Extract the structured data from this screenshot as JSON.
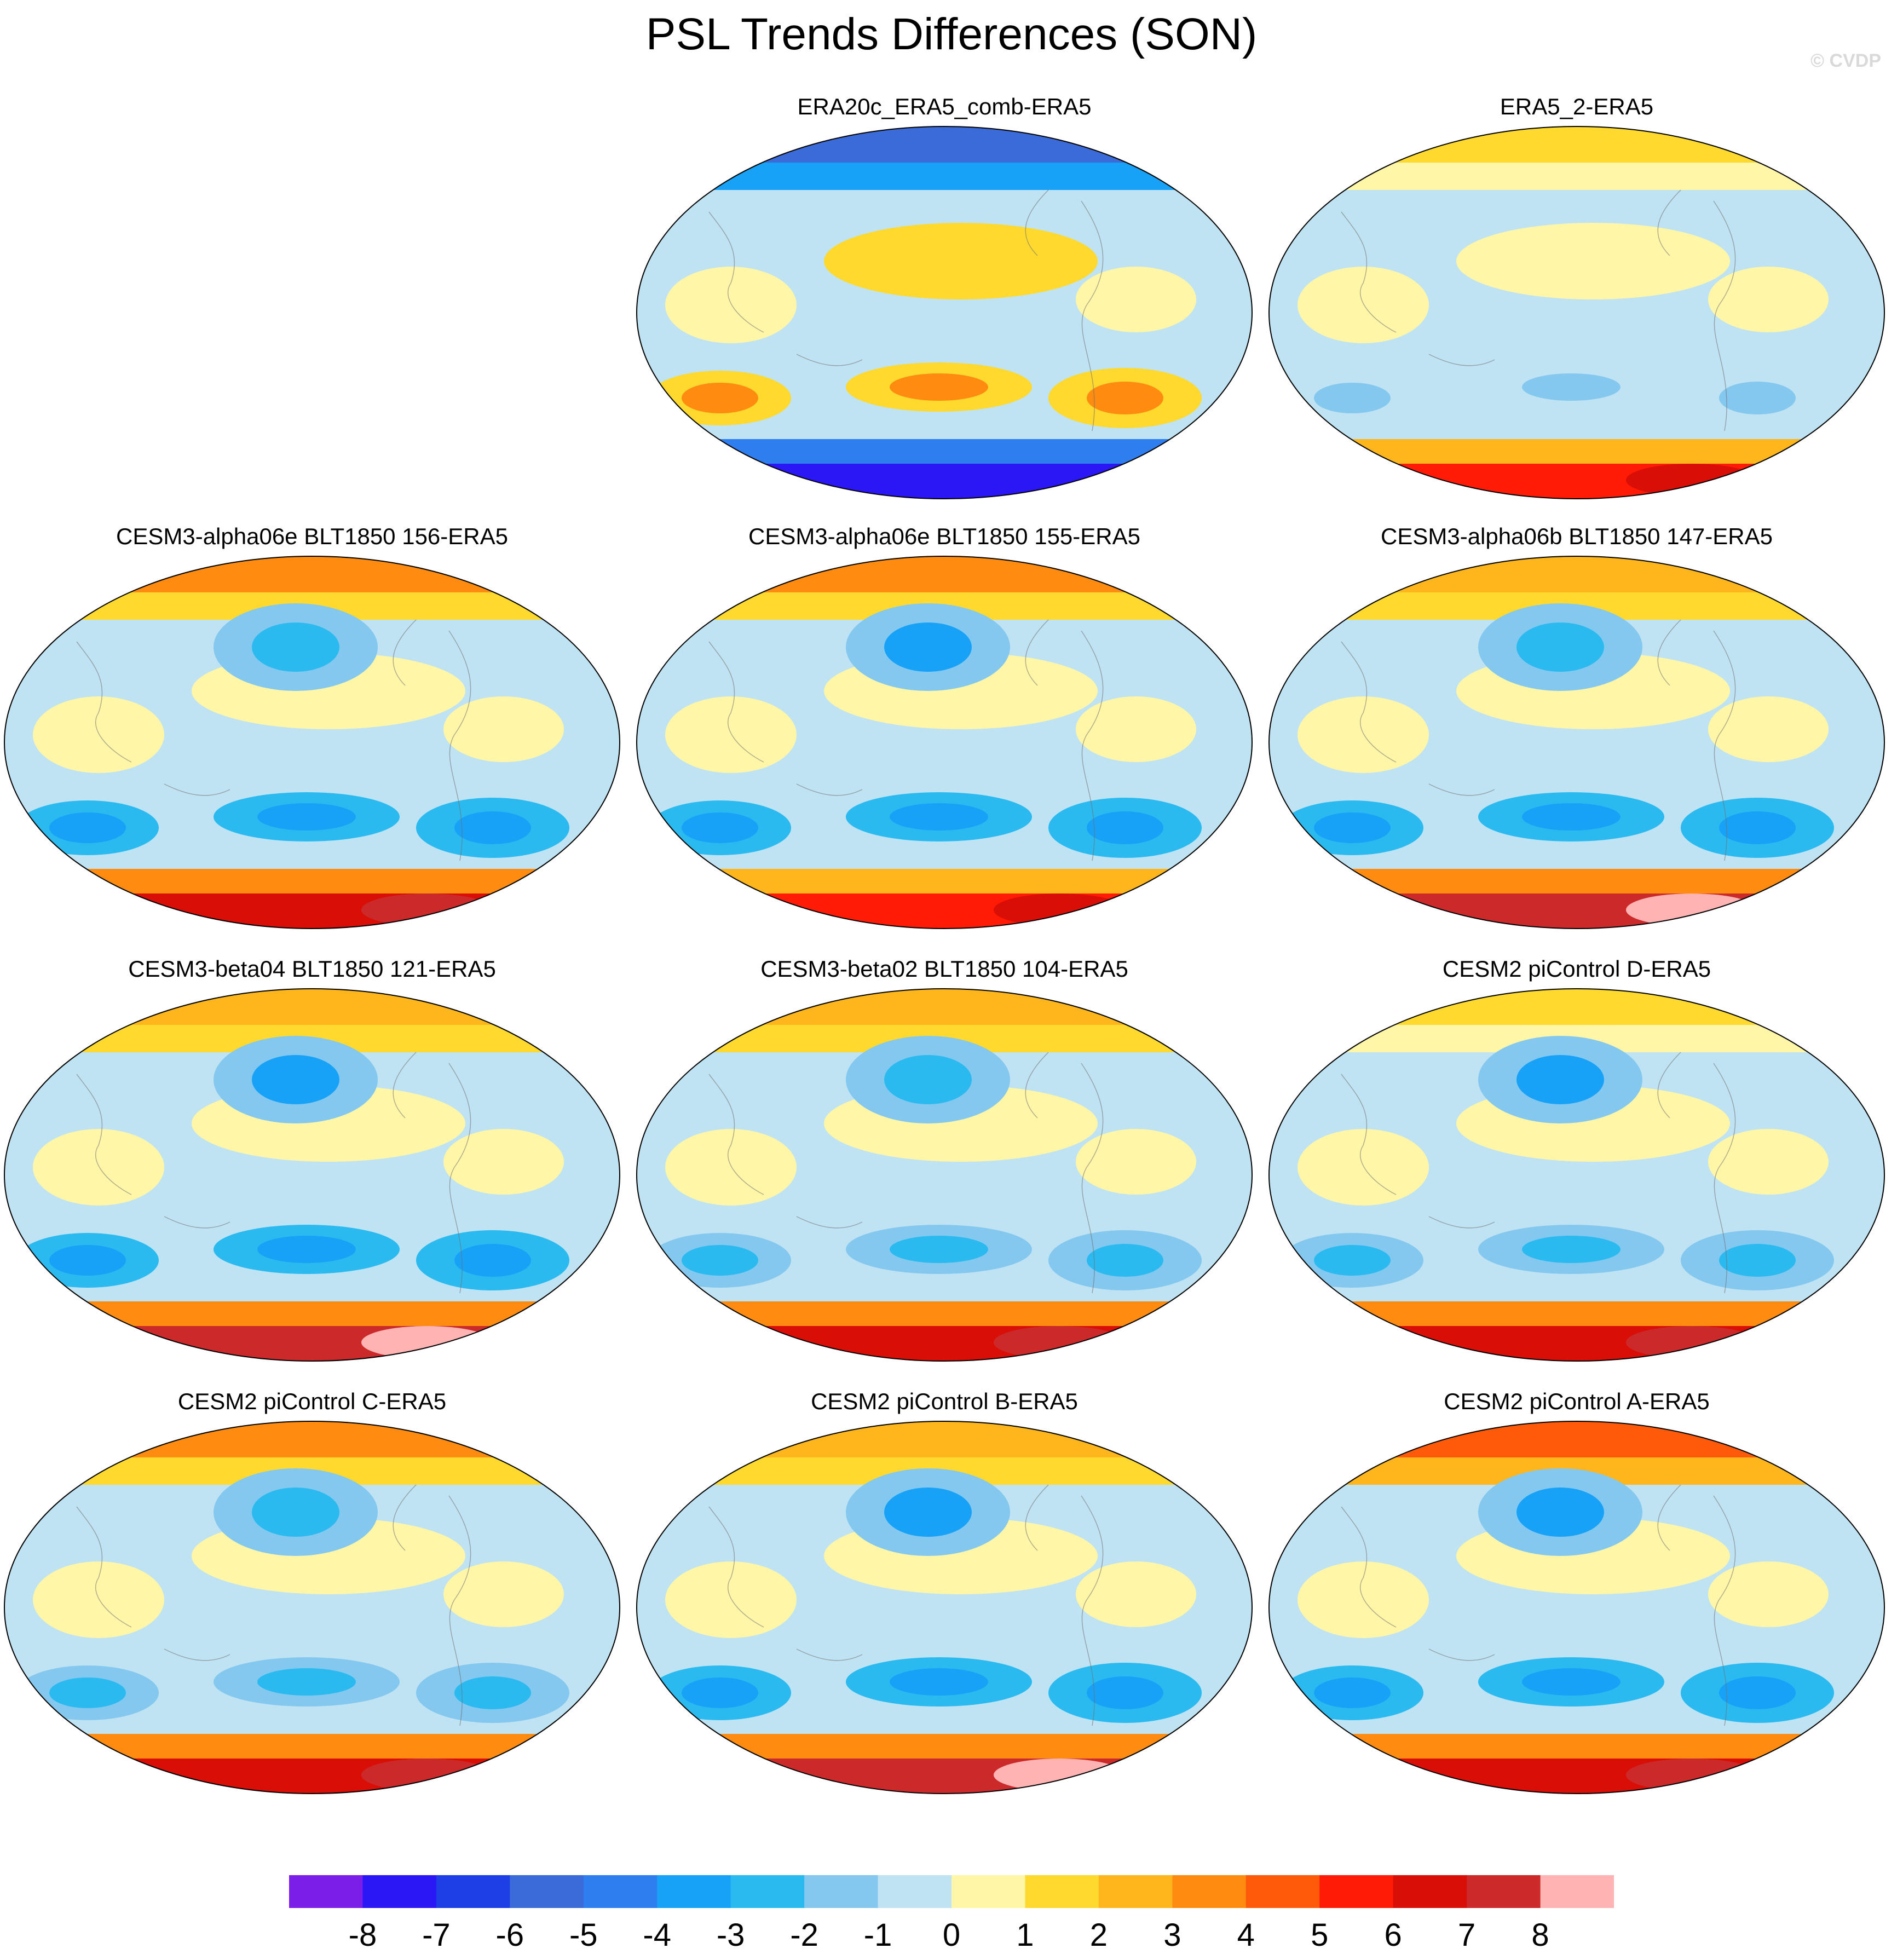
{
  "figure": {
    "title": "PSL Trends Differences (SON)",
    "watermark": "© CVDP"
  },
  "colorbar": {
    "colors": [
      "#7a1ee8",
      "#2b16f5",
      "#1f3fe6",
      "#3b6ad9",
      "#2f7ef0",
      "#17a2f7",
      "#2bbaf0",
      "#85c8ef",
      "#bfe3f3",
      "#fff6a8",
      "#ffd92e",
      "#ffb51c",
      "#ff8c11",
      "#ff5a0a",
      "#ff1b05",
      "#d90e07",
      "#cc2a2a",
      "#ffb3b3"
    ],
    "tick_labels": [
      "-8",
      "-7",
      "-6",
      "-5",
      "-4",
      "-3",
      "-2",
      "-1",
      "0",
      "1",
      "2",
      "3",
      "4",
      "5",
      "6",
      "7",
      "8"
    ]
  },
  "chart_data": [
    {
      "type": "heatmap",
      "title": "ERA20c_ERA5_comb-ERA5",
      "variable": "PSL trend difference",
      "season": "SON",
      "features": {
        "nh_high_lat": -6,
        "tropics": 1,
        "sh_midlat": 3,
        "antarctic": -8
      }
    },
    {
      "type": "heatmap",
      "title": "ERA5_2-ERA5",
      "variable": "PSL trend difference",
      "season": "SON",
      "features": {
        "nh_high_lat": 1,
        "tropics": 0.5,
        "sh_midlat": -1.5,
        "antarctic": 5
      }
    },
    {
      "type": "heatmap",
      "title": "CESM3-alpha06e BLT1850 156-ERA5",
      "variable": "PSL trend difference",
      "season": "SON",
      "features": {
        "nh_high_lat": 3,
        "north_pacific": -2.5,
        "sh_midlat": -3.5,
        "antarctic": 6
      }
    },
    {
      "type": "heatmap",
      "title": "CESM3-alpha06e BLT1850 155-ERA5",
      "variable": "PSL trend difference",
      "season": "SON",
      "features": {
        "nh_high_lat": 3,
        "north_pacific": -3.5,
        "sh_midlat": -3.5,
        "antarctic": 5.5
      }
    },
    {
      "type": "heatmap",
      "title": "CESM3-alpha06b BLT1850 147-ERA5",
      "variable": "PSL trend difference",
      "season": "SON",
      "features": {
        "nh_high_lat": 2.5,
        "north_pacific": -3,
        "sh_midlat": -3.5,
        "antarctic": 7.5
      }
    },
    {
      "type": "heatmap",
      "title": "CESM3-beta04 BLT1850 121-ERA5",
      "variable": "PSL trend difference",
      "season": "SON",
      "features": {
        "nh_high_lat": 2,
        "north_pacific": -3.5,
        "sh_midlat": -3.5,
        "antarctic": 7
      }
    },
    {
      "type": "heatmap",
      "title": "CESM3-beta02 BLT1850 104-ERA5",
      "variable": "PSL trend difference",
      "season": "SON",
      "features": {
        "nh_high_lat": 2,
        "north_pacific": -3,
        "sh_midlat": -3,
        "antarctic": 6.5
      }
    },
    {
      "type": "heatmap",
      "title": "CESM2 piControl D-ERA5",
      "variable": "PSL trend difference",
      "season": "SON",
      "features": {
        "nh_high_lat": 1.5,
        "north_pacific": -4,
        "sh_midlat": -3,
        "antarctic": 6.5
      }
    },
    {
      "type": "heatmap",
      "title": "CESM2 piControl C-ERA5",
      "variable": "PSL trend difference",
      "season": "SON",
      "features": {
        "nh_high_lat": 3,
        "north_pacific": -2.5,
        "sh_midlat": -3,
        "antarctic": 6
      }
    },
    {
      "type": "heatmap",
      "title": "CESM2 piControl B-ERA5",
      "variable": "PSL trend difference",
      "season": "SON",
      "features": {
        "nh_high_lat": 2,
        "north_pacific": -3.5,
        "sh_midlat": -3.5,
        "antarctic": 7.5
      }
    },
    {
      "type": "heatmap",
      "title": "CESM2 piControl A-ERA5",
      "variable": "PSL trend difference",
      "season": "SON",
      "features": {
        "nh_high_lat": 4,
        "north_pacific": -4,
        "sh_midlat": -4,
        "antarctic": 6
      }
    }
  ]
}
